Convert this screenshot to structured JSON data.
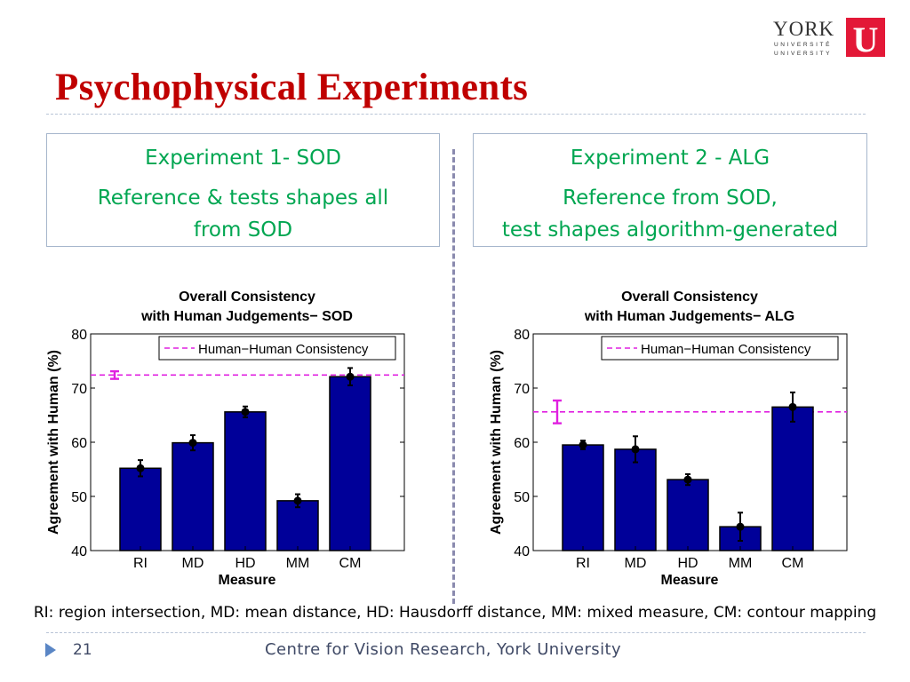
{
  "logo": {
    "name": "YORK",
    "line1": "UNIVERSITÉ",
    "line2": "UNIVERSITY",
    "mark": "U",
    "color": "#e31837"
  },
  "title": "Psychophysical Experiments",
  "experiments": [
    {
      "heading": "Experiment 1- SOD",
      "description": "Reference & tests shapes all\nfrom SOD"
    },
    {
      "heading": "Experiment 2 - ALG",
      "description": "Reference from SOD,\ntest shapes algorithm-generated"
    }
  ],
  "chart_data": [
    {
      "type": "bar",
      "title": "Overall Consistency",
      "subtitle": "with Human Judgements− SOD",
      "xlabel": "Measure",
      "ylabel": "Agreement with Human (%)",
      "ylim": [
        40,
        80
      ],
      "yticks": [
        40,
        50,
        60,
        70,
        80
      ],
      "categories": [
        "RI",
        "MD",
        "HD",
        "MM",
        "CM"
      ],
      "values": [
        55.2,
        59.9,
        65.6,
        49.2,
        72.1
      ],
      "errors": [
        1.5,
        1.4,
        1.0,
        1.2,
        1.6
      ],
      "bar_color": "#000099",
      "reference": {
        "label": "Human−Human Consistency",
        "value": 72.4,
        "error": 0.7,
        "color": "#e020e0",
        "style": "dashed"
      },
      "legend": "top",
      "grid": false
    },
    {
      "type": "bar",
      "title": "Overall Consistency",
      "subtitle": "with Human Judgements− ALG",
      "xlabel": "Measure",
      "ylabel": "Agreement with Human (%)",
      "ylim": [
        40,
        80
      ],
      "yticks": [
        40,
        50,
        60,
        70,
        80
      ],
      "categories": [
        "RI",
        "MD",
        "HD",
        "MM",
        "CM"
      ],
      "values": [
        59.5,
        58.7,
        53.1,
        44.4,
        66.5
      ],
      "errors": [
        0.8,
        2.4,
        1.0,
        2.6,
        2.7
      ],
      "bar_color": "#000099",
      "reference": {
        "label": "Human−Human Consistency",
        "value": 65.6,
        "error": 2.1,
        "color": "#e020e0",
        "style": "dashed"
      },
      "legend": "top",
      "grid": false
    }
  ],
  "caption": "RI: region intersection, MD: mean distance, HD: Hausdorff distance, MM: mixed measure, CM: contour mapping",
  "footer": {
    "slide_number": "21",
    "text": "Centre for Vision Research, York University",
    "arrow_icon": "play-arrow-icon",
    "arrow_color": "#5a86c5"
  }
}
